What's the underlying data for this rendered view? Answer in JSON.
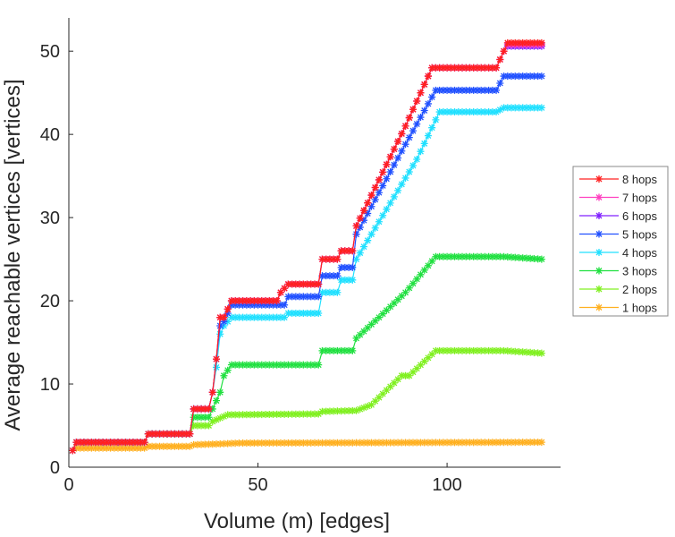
{
  "chart_data": {
    "type": "line",
    "title": "",
    "xlabel": "Volume (m) [edges]",
    "ylabel": "Average reachable vertices [vertices]",
    "xlim": [
      0,
      130
    ],
    "ylim": [
      0,
      54
    ],
    "xticks": [
      0,
      50,
      100
    ],
    "yticks": [
      0,
      10,
      20,
      30,
      40,
      50
    ],
    "legend_position": "right",
    "series": [
      {
        "name": "8 hops",
        "color": "#ff2020",
        "points": [
          [
            1,
            2
          ],
          [
            2,
            3
          ],
          [
            20,
            3
          ],
          [
            21,
            4
          ],
          [
            32,
            4
          ],
          [
            33,
            7
          ],
          [
            37,
            7
          ],
          [
            38,
            9
          ],
          [
            39,
            13
          ],
          [
            40,
            18
          ],
          [
            41,
            18
          ],
          [
            43,
            20
          ],
          [
            55,
            20
          ],
          [
            56,
            21
          ],
          [
            58,
            22
          ],
          [
            66,
            22
          ],
          [
            67,
            25
          ],
          [
            71,
            25
          ],
          [
            72,
            26
          ],
          [
            75,
            26
          ],
          [
            76,
            29
          ],
          [
            89,
            41
          ],
          [
            96,
            48
          ],
          [
            113,
            48
          ],
          [
            115,
            50
          ],
          [
            116,
            51
          ],
          [
            125,
            51
          ]
        ]
      },
      {
        "name": "7 hops",
        "color": "#ff40c0",
        "points": [
          [
            1,
            2
          ],
          [
            2,
            3
          ],
          [
            20,
            3
          ],
          [
            21,
            4
          ],
          [
            32,
            4
          ],
          [
            33,
            7
          ],
          [
            37,
            7
          ],
          [
            38,
            9
          ],
          [
            39,
            13
          ],
          [
            40,
            18
          ],
          [
            41,
            18
          ],
          [
            43,
            20
          ],
          [
            55,
            20
          ],
          [
            56,
            21
          ],
          [
            58,
            22
          ],
          [
            66,
            22
          ],
          [
            67,
            25
          ],
          [
            71,
            25
          ],
          [
            72,
            26
          ],
          [
            75,
            26
          ],
          [
            76,
            29
          ],
          [
            89,
            41
          ],
          [
            96,
            48
          ],
          [
            113,
            48
          ],
          [
            115,
            50
          ],
          [
            116,
            50.8
          ],
          [
            125,
            50.8
          ]
        ]
      },
      {
        "name": "6 hops",
        "color": "#8020ff",
        "points": [
          [
            1,
            2
          ],
          [
            2,
            3
          ],
          [
            20,
            3
          ],
          [
            21,
            4
          ],
          [
            32,
            4
          ],
          [
            33,
            7
          ],
          [
            37,
            7
          ],
          [
            38,
            9
          ],
          [
            39,
            13
          ],
          [
            40,
            18
          ],
          [
            41,
            18
          ],
          [
            43,
            20
          ],
          [
            55,
            20
          ],
          [
            56,
            21
          ],
          [
            58,
            22
          ],
          [
            66,
            22
          ],
          [
            67,
            25
          ],
          [
            71,
            25
          ],
          [
            72,
            26
          ],
          [
            75,
            26
          ],
          [
            76,
            29
          ],
          [
            89,
            41
          ],
          [
            96,
            48
          ],
          [
            113,
            48
          ],
          [
            115,
            50
          ],
          [
            116,
            50.6
          ],
          [
            125,
            50.6
          ]
        ]
      },
      {
        "name": "5 hops",
        "color": "#2050ff",
        "points": [
          [
            1,
            2
          ],
          [
            2,
            3
          ],
          [
            20,
            3
          ],
          [
            21,
            4
          ],
          [
            32,
            4
          ],
          [
            33,
            7
          ],
          [
            37,
            7
          ],
          [
            38,
            9
          ],
          [
            39,
            13
          ],
          [
            40,
            17
          ],
          [
            41,
            17.5
          ],
          [
            43,
            19.5
          ],
          [
            57,
            19.5
          ],
          [
            58,
            20.5
          ],
          [
            66,
            20.5
          ],
          [
            67,
            23
          ],
          [
            71,
            23
          ],
          [
            72,
            24
          ],
          [
            75,
            24
          ],
          [
            76,
            28
          ],
          [
            88,
            38
          ],
          [
            97,
            45.3
          ],
          [
            113,
            45.3
          ],
          [
            115,
            47
          ],
          [
            125,
            47
          ]
        ]
      },
      {
        "name": "4 hops",
        "color": "#20e0ff",
        "points": [
          [
            1,
            2
          ],
          [
            2,
            3
          ],
          [
            20,
            3
          ],
          [
            21,
            4
          ],
          [
            32,
            4
          ],
          [
            33,
            7
          ],
          [
            37,
            7
          ],
          [
            38,
            9
          ],
          [
            39,
            12
          ],
          [
            40,
            16
          ],
          [
            41,
            17
          ],
          [
            43,
            18
          ],
          [
            57,
            18
          ],
          [
            58,
            18.5
          ],
          [
            66,
            18.5
          ],
          [
            67,
            21
          ],
          [
            71,
            21
          ],
          [
            72,
            22.5
          ],
          [
            75,
            22.5
          ],
          [
            76,
            25
          ],
          [
            92,
            37
          ],
          [
            98,
            42.7
          ],
          [
            113,
            42.7
          ],
          [
            115,
            43.2
          ],
          [
            125,
            43.2
          ]
        ]
      },
      {
        "name": "3 hops",
        "color": "#20e040",
        "points": [
          [
            1,
            2
          ],
          [
            2,
            3
          ],
          [
            20,
            3
          ],
          [
            21,
            4
          ],
          [
            32,
            4
          ],
          [
            33,
            6
          ],
          [
            37,
            6
          ],
          [
            38,
            7
          ],
          [
            40,
            9
          ],
          [
            41,
            11
          ],
          [
            43,
            12.3
          ],
          [
            66,
            12.3
          ],
          [
            67,
            14
          ],
          [
            75,
            14
          ],
          [
            76,
            15.5
          ],
          [
            82,
            18
          ],
          [
            89,
            21
          ],
          [
            97,
            25.3
          ],
          [
            115,
            25.3
          ],
          [
            125,
            25
          ]
        ]
      },
      {
        "name": "2 hops",
        "color": "#80f020",
        "points": [
          [
            1,
            2
          ],
          [
            2,
            3
          ],
          [
            20,
            3
          ],
          [
            21,
            4
          ],
          [
            32,
            4
          ],
          [
            33,
            5
          ],
          [
            37,
            5
          ],
          [
            38,
            5.5
          ],
          [
            42,
            6.3
          ],
          [
            66,
            6.4
          ],
          [
            67,
            6.7
          ],
          [
            76,
            6.8
          ],
          [
            80,
            7.5
          ],
          [
            88,
            11
          ],
          [
            90,
            11
          ],
          [
            97,
            14
          ],
          [
            115,
            14
          ],
          [
            125,
            13.7
          ]
        ]
      },
      {
        "name": "1 hops",
        "color": "#ffb020",
        "points": [
          [
            1,
            2
          ],
          [
            2,
            2.3
          ],
          [
            20,
            2.3
          ],
          [
            21,
            2.5
          ],
          [
            32,
            2.5
          ],
          [
            33,
            2.7
          ],
          [
            40,
            2.8
          ],
          [
            45,
            2.9
          ],
          [
            125,
            3.0
          ]
        ]
      }
    ]
  }
}
